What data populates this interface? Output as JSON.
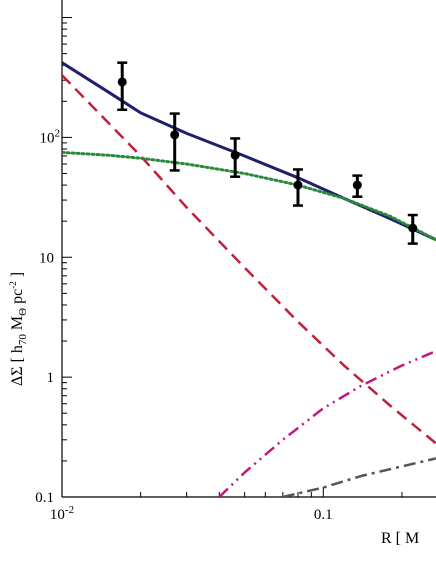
{
  "chart_data": {
    "type": "line",
    "xscale": "log",
    "yscale": "log",
    "xlim": [
      0.01,
      0.27
    ],
    "ylim": [
      0.1,
      1400
    ],
    "xticks": [
      {
        "value": 0.01,
        "base": "10",
        "exp": "-2"
      },
      {
        "value": 0.1,
        "base": "0.1",
        "exp": ""
      }
    ],
    "yticks": [
      {
        "value": 100,
        "base": "10",
        "exp": "2"
      },
      {
        "value": 10,
        "base": "10",
        "exp": ""
      },
      {
        "value": 1,
        "base": "1",
        "exp": ""
      },
      {
        "value": 0.1,
        "base": "0.1",
        "exp": ""
      }
    ],
    "xlabel": "R  [ M",
    "ylabel": {
      "prefix": "ΔΣ   [  h",
      "sub1": "70",
      "mid": "  M",
      "sub2": "Θ",
      "mid2": "  pc",
      "sup": "-2",
      "suffix": "  ]"
    },
    "series": [
      {
        "style": "solid",
        "color": "#1f1f6b",
        "x": [
          0.01,
          0.015,
          0.02,
          0.03,
          0.05,
          0.08,
          0.12,
          0.18,
          0.27
        ],
        "y": [
          420,
          240,
          160,
          108,
          70,
          46,
          31,
          21,
          14
        ]
      },
      {
        "style": "dashed",
        "color": "#c0203c",
        "x": [
          0.01,
          0.02,
          0.03,
          0.05,
          0.08,
          0.12,
          0.18,
          0.27
        ],
        "y": [
          330,
          70,
          26,
          8.2,
          2.9,
          1.25,
          0.58,
          0.28
        ]
      },
      {
        "style": "dotted",
        "color": "#2a8a3a",
        "x": [
          0.01,
          0.015,
          0.02,
          0.03,
          0.05,
          0.08,
          0.12,
          0.18,
          0.27
        ],
        "y": [
          75,
          71,
          67,
          60,
          50,
          40,
          31,
          22,
          14
        ]
      },
      {
        "style": "dash-dot-dot",
        "color": "#c2187c",
        "x": [
          0.04,
          0.05,
          0.07,
          0.1,
          0.14,
          0.2,
          0.27
        ],
        "y": [
          0.1,
          0.16,
          0.3,
          0.55,
          0.85,
          1.25,
          1.65
        ]
      },
      {
        "style": "dash-dot",
        "color": "#555555",
        "x": [
          0.07,
          0.1,
          0.14,
          0.2,
          0.27
        ],
        "y": [
          0.1,
          0.12,
          0.15,
          0.18,
          0.21
        ]
      }
    ],
    "points": [
      {
        "x": 0.017,
        "y": 290,
        "ylo": 170,
        "yhi": 420
      },
      {
        "x": 0.027,
        "y": 105,
        "ylo": 53,
        "yhi": 158
      },
      {
        "x": 0.046,
        "y": 71,
        "ylo": 47,
        "yhi": 98
      },
      {
        "x": 0.08,
        "y": 40,
        "ylo": 27,
        "yhi": 54
      },
      {
        "x": 0.135,
        "y": 40,
        "ylo": 32,
        "yhi": 48
      },
      {
        "x": 0.22,
        "y": 17.5,
        "ylo": 13,
        "yhi": 22.5
      }
    ]
  }
}
